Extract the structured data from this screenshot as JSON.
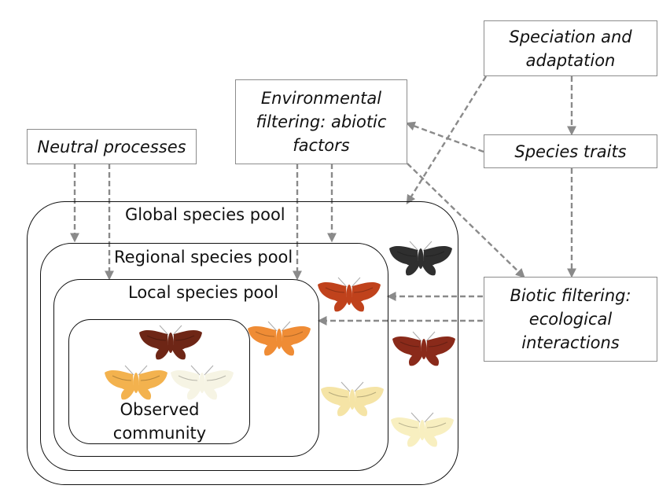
{
  "boxes": {
    "neutral": "Neutral processes",
    "environmental": [
      "Environmental",
      "filtering: abiotic",
      "factors"
    ],
    "speciation": [
      "Speciation and",
      "adaptation"
    ],
    "traits": "Species traits",
    "biotic": [
      "Biotic filtering:",
      "ecological",
      "interactions"
    ]
  },
  "pools": {
    "global": "Global species pool",
    "regional": "Regional species pool",
    "local": "Local species pool",
    "observed": [
      "Observed",
      "community"
    ]
  },
  "colors": {
    "arrow": "#8a8a8a",
    "moth_black": "#2f2f2f",
    "moth_rust": "#c0421c",
    "moth_maroon": "#8a2a1a",
    "moth_darkbrown": "#6e2616",
    "moth_orange": "#ef8c35",
    "moth_amber": "#f3b24e",
    "moth_pale": "#f5e4a6",
    "moth_cream": "#f6f4e4"
  }
}
